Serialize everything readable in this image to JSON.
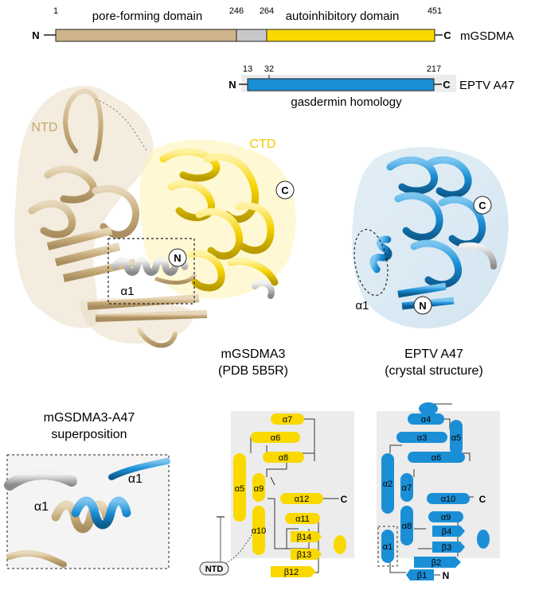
{
  "mgsdma_bar": {
    "start_num": "1",
    "pore_end_num": "246",
    "linker_end_num": "264",
    "end_num": "451",
    "pore_label": "pore-forming domain",
    "auto_label": "autoinhibitory domain",
    "n_term": "N",
    "c_term": "C",
    "name": "mGSDMA"
  },
  "eptv_bar": {
    "start_num": "13",
    "num_32": "32",
    "end_num": "217",
    "domain_label": "gasdermin homology",
    "n_term": "N",
    "c_term": "C",
    "name": "EPTV A47"
  },
  "left_structure": {
    "ntd_label": "NTD",
    "ctd_label": "CTD",
    "c_badge": "C",
    "n_badge": "N",
    "alpha1": "α1",
    "title_line1": "mGSDMA3",
    "title_line2": "(PDB 5B5R)"
  },
  "right_structure": {
    "c_badge": "C",
    "n_badge": "N",
    "alpha1": "α1",
    "title_line1": "EPTV A47",
    "title_line2": "(crystal structure)"
  },
  "superposition": {
    "title_line1": "mGSDMA3-A47",
    "title_line2": "superposition",
    "alpha1_left": "α1",
    "alpha1_right": "α1"
  },
  "topology_mgsdma": {
    "elements": [
      "α7",
      "α6",
      "α8",
      "α5",
      "α9",
      "α12",
      "α11",
      "β14",
      "α10",
      "β13",
      "β12"
    ],
    "c_term": "C",
    "ntd_tag": "NTD"
  },
  "topology_eptv": {
    "elements": [
      "α4",
      "α5",
      "α3",
      "α6",
      "α2",
      "α7",
      "α10",
      "α9",
      "β4",
      "α8",
      "β3",
      "α1",
      "β2",
      "β1"
    ],
    "c_term": "C",
    "n_term": "N"
  },
  "colors": {
    "tan": "#cdb48a",
    "gray": "#c8c8c8",
    "yellow": "#f9d900",
    "blue": "#1b8fd6",
    "panel_gray": "#ececec"
  }
}
